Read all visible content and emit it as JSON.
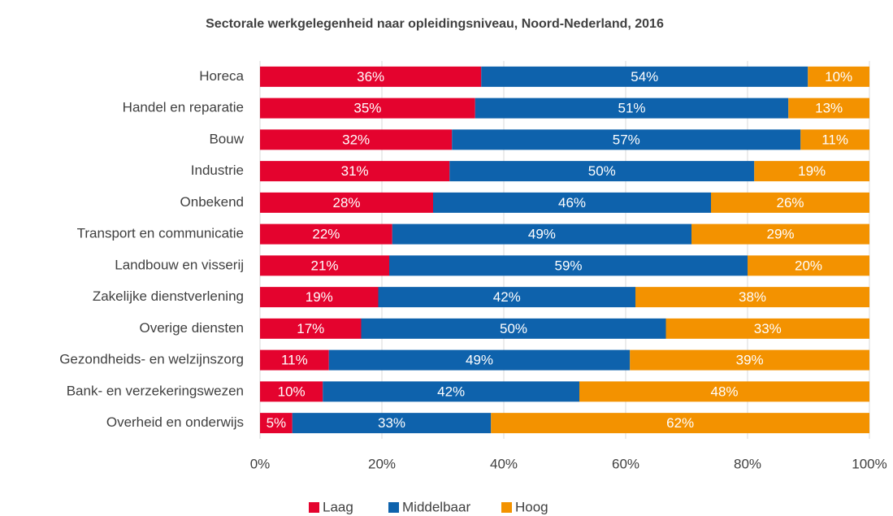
{
  "chart_data": {
    "type": "stacked-bar-horizontal",
    "title": "Sectorale werkgelegenheid naar opleidingsniveau, Noord-Nederland, 2016",
    "categories": [
      "Horeca",
      "Handel en reparatie",
      "Bouw",
      "Industrie",
      "Onbekend",
      "Transport en communicatie",
      "Landbouw en visserij",
      "Zakelijke dienstverlening",
      "Overige diensten",
      "Gezondheids- en welzijnszorg",
      "Bank- en verzekeringswezen",
      "Overheid en onderwijs"
    ],
    "series": [
      {
        "name": "Laag",
        "color": "#e4032e",
        "values": [
          36.3,
          35.3,
          31.5,
          31.1,
          28.4,
          21.7,
          21.2,
          19.4,
          16.6,
          11.3,
          10.3,
          5.3
        ],
        "value_labels": [
          "36%",
          "35%",
          "32%",
          "31%",
          "28%",
          "22%",
          "21%",
          "19%",
          "17%",
          "11%",
          "10%",
          "5%"
        ]
      },
      {
        "name": "Middelbaar",
        "color": "#0e62ac",
        "values": [
          53.6,
          51.4,
          57.2,
          50.0,
          45.6,
          49.1,
          58.8,
          42.2,
          50.0,
          49.4,
          42.1,
          32.6
        ],
        "value_labels": [
          "54%",
          "51%",
          "57%",
          "50%",
          "46%",
          "49%",
          "59%",
          "42%",
          "50%",
          "49%",
          "42%",
          "33%"
        ]
      },
      {
        "name": "Hoog",
        "color": "#f39200",
        "values": [
          10.1,
          13.3,
          11.3,
          18.9,
          26.0,
          29.2,
          20.0,
          38.4,
          33.4,
          39.3,
          47.6,
          62.1
        ],
        "value_labels": [
          "10%",
          "13%",
          "11%",
          "19%",
          "26%",
          "29%",
          "20%",
          "38%",
          "33%",
          "39%",
          "48%",
          "62%"
        ]
      }
    ],
    "xlim": [
      0,
      100
    ],
    "xticks": [
      {
        "value": 0,
        "label": "0%"
      },
      {
        "value": 20,
        "label": "20%"
      },
      {
        "value": 40,
        "label": "40%"
      },
      {
        "value": 60,
        "label": "60%"
      },
      {
        "value": 80,
        "label": "80%"
      },
      {
        "value": 100,
        "label": "100%"
      }
    ],
    "grid": true,
    "legend": "bottom"
  }
}
